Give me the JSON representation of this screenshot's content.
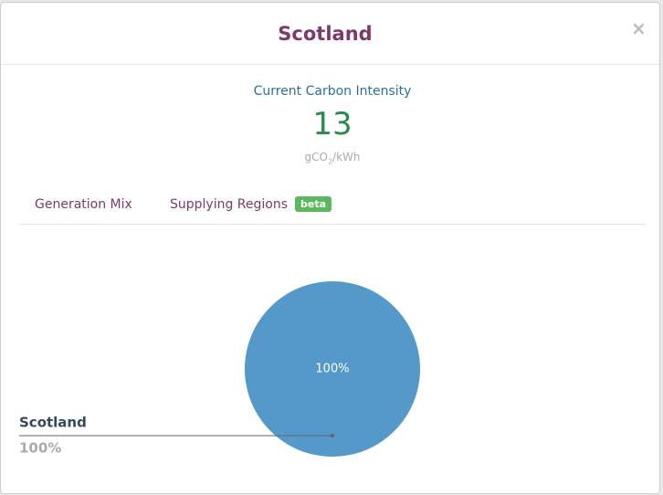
{
  "modal": {
    "title": "Scotland",
    "close": "×"
  },
  "intensity": {
    "label": "Current Carbon Intensity",
    "value": 13,
    "unit": {
      "base": "gCO",
      "subscript": "2",
      "rest": "/kWh"
    }
  },
  "tabs": [
    {
      "label": "Generation Mix"
    },
    {
      "label": "Supplying Regions",
      "badge": "beta"
    }
  ],
  "chart_data": {
    "type": "pie",
    "categories": [
      "Scotland"
    ],
    "values": [
      100
    ],
    "value_labels": [
      "100%"
    ],
    "colors": [
      "#5499c9"
    ]
  }
}
